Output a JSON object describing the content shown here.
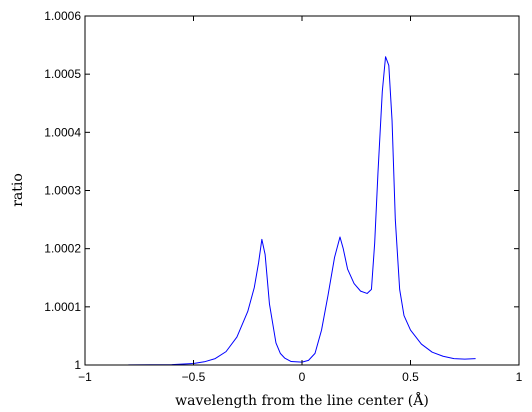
{
  "chart_data": {
    "type": "line",
    "title": "",
    "xlabel": "wavelength from the line center (Å)",
    "ylabel": "ratio",
    "xlim": [
      -1,
      1
    ],
    "ylim": [
      1,
      1.0006
    ],
    "xticks": [
      -1,
      -0.5,
      0,
      0.5,
      1
    ],
    "xtick_labels": [
      "−1",
      "−0.5",
      "0",
      "0.5",
      "1"
    ],
    "yticks": [
      1,
      1.0001,
      1.0002,
      1.0003,
      1.0004,
      1.0005,
      1.0006
    ],
    "ytick_labels": [
      "1",
      "1.0001",
      "1.0002",
      "1.0003",
      "1.0004",
      "1.0005",
      "1.0006"
    ],
    "grid": false,
    "line_color": "#0000ff",
    "series": [
      {
        "x": [
          -0.8,
          -0.6,
          -0.5,
          -0.45,
          -0.4,
          -0.35,
          -0.3,
          -0.25,
          -0.22,
          -0.2,
          -0.185,
          -0.17,
          -0.15,
          -0.12,
          -0.1,
          -0.08,
          -0.05,
          0,
          0.03,
          0.06,
          0.09,
          0.12,
          0.15,
          0.175,
          0.19,
          0.21,
          0.24,
          0.27,
          0.3,
          0.32,
          0.335,
          0.35,
          0.37,
          0.385,
          0.4,
          0.415,
          0.43,
          0.45,
          0.47,
          0.5,
          0.55,
          0.6,
          0.65,
          0.7,
          0.75,
          0.8
        ],
        "y": [
          1.0000002,
          1.0000007,
          1.0000025,
          1.0000055,
          1.000011,
          1.000023,
          1.000048,
          1.000092,
          1.000133,
          1.000176,
          1.000216,
          1.00019,
          1.000105,
          1.000038,
          1.00002,
          1.000012,
          1.000006,
          1.000005,
          1.000008,
          1.00002,
          1.00006,
          1.00012,
          1.000185,
          1.00022,
          1.0002,
          1.000165,
          1.00014,
          1.000127,
          1.000123,
          1.00013,
          1.00021,
          1.00033,
          1.00047,
          1.00053,
          1.000515,
          1.00042,
          1.00025,
          1.00013,
          1.000085,
          1.00006,
          1.000036,
          1.000022,
          1.000015,
          1.000011,
          1.00001,
          1.000011
        ]
      }
    ]
  }
}
